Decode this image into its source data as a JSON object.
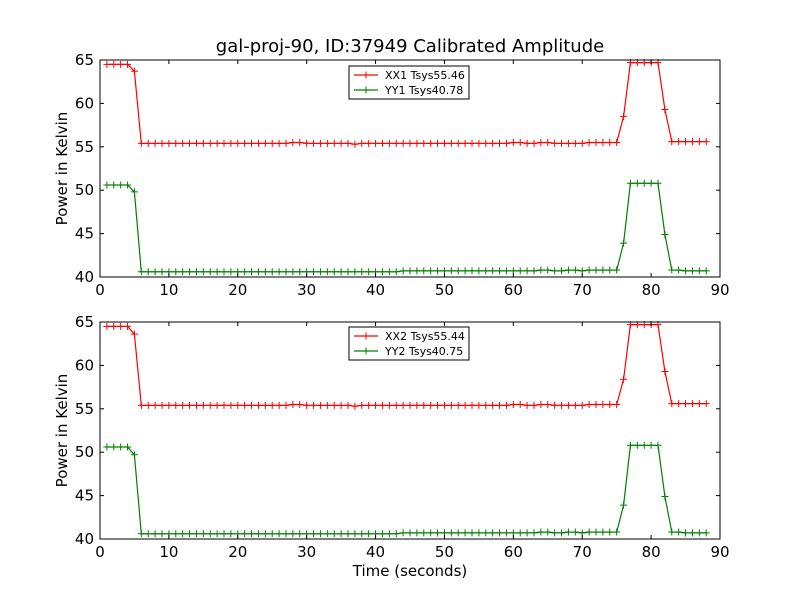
{
  "title": "gal-proj-90, ID:37949 Calibrated Amplitude",
  "chart_data": [
    {
      "type": "line",
      "xlabel": "",
      "ylabel": "Power in Kelvin",
      "xlim": [
        0,
        90
      ],
      "ylim": [
        40,
        65
      ],
      "xticks": [
        "0",
        "10",
        "20",
        "30",
        "40",
        "50",
        "60",
        "70",
        "80",
        "90"
      ],
      "yticks": [
        "40",
        "45",
        "50",
        "55",
        "60",
        "65"
      ],
      "grid": false,
      "legend_position": "top-center",
      "x": [
        1,
        2,
        3,
        4,
        5,
        6,
        7,
        8,
        9,
        10,
        11,
        12,
        13,
        14,
        15,
        16,
        17,
        18,
        19,
        20,
        21,
        22,
        23,
        24,
        25,
        26,
        27,
        28,
        29,
        30,
        31,
        32,
        33,
        34,
        35,
        36,
        37,
        38,
        39,
        40,
        41,
        42,
        43,
        44,
        45,
        46,
        47,
        48,
        49,
        50,
        51,
        52,
        53,
        54,
        55,
        56,
        57,
        58,
        59,
        60,
        61,
        62,
        63,
        64,
        65,
        66,
        67,
        68,
        69,
        70,
        71,
        72,
        73,
        74,
        75,
        76,
        77,
        78,
        79,
        80,
        81,
        82,
        83,
        84,
        85,
        86,
        87,
        88
      ],
      "series": [
        {
          "name": "XX1 Tsys55.46",
          "color": "#ff0000",
          "values": [
            64.5,
            64.5,
            64.5,
            64.5,
            63.7,
            55.4,
            55.4,
            55.4,
            55.4,
            55.4,
            55.4,
            55.4,
            55.4,
            55.4,
            55.4,
            55.4,
            55.4,
            55.4,
            55.4,
            55.4,
            55.4,
            55.4,
            55.4,
            55.4,
            55.4,
            55.4,
            55.4,
            55.5,
            55.5,
            55.4,
            55.4,
            55.4,
            55.4,
            55.4,
            55.4,
            55.4,
            55.3,
            55.4,
            55.4,
            55.4,
            55.4,
            55.4,
            55.4,
            55.4,
            55.4,
            55.4,
            55.4,
            55.4,
            55.4,
            55.4,
            55.4,
            55.4,
            55.4,
            55.4,
            55.4,
            55.4,
            55.4,
            55.4,
            55.4,
            55.5,
            55.5,
            55.4,
            55.4,
            55.5,
            55.5,
            55.4,
            55.4,
            55.4,
            55.4,
            55.4,
            55.5,
            55.5,
            55.5,
            55.5,
            55.5,
            58.5,
            64.7,
            64.7,
            64.7,
            64.7,
            64.7,
            59.3,
            55.6,
            55.6,
            55.6,
            55.6,
            55.6,
            55.6
          ]
        },
        {
          "name": "YY1 Tsys40.78",
          "color": "#008000",
          "values": [
            50.6,
            50.6,
            50.6,
            50.6,
            49.8,
            40.6,
            40.6,
            40.6,
            40.6,
            40.6,
            40.6,
            40.6,
            40.6,
            40.6,
            40.6,
            40.6,
            40.6,
            40.6,
            40.6,
            40.6,
            40.6,
            40.6,
            40.6,
            40.6,
            40.6,
            40.6,
            40.6,
            40.6,
            40.6,
            40.6,
            40.6,
            40.6,
            40.6,
            40.6,
            40.6,
            40.6,
            40.6,
            40.6,
            40.6,
            40.6,
            40.6,
            40.6,
            40.6,
            40.7,
            40.7,
            40.7,
            40.7,
            40.7,
            40.7,
            40.7,
            40.7,
            40.7,
            40.7,
            40.7,
            40.7,
            40.7,
            40.7,
            40.7,
            40.7,
            40.7,
            40.7,
            40.7,
            40.7,
            40.8,
            40.8,
            40.7,
            40.7,
            40.8,
            40.8,
            40.7,
            40.8,
            40.8,
            40.8,
            40.8,
            40.8,
            43.9,
            50.8,
            50.8,
            50.8,
            50.8,
            50.8,
            44.9,
            40.8,
            40.8,
            40.7,
            40.7,
            40.7,
            40.7
          ]
        }
      ]
    },
    {
      "type": "line",
      "xlabel": "Time (seconds)",
      "ylabel": "Power in Kelvin",
      "xlim": [
        0,
        90
      ],
      "ylim": [
        40,
        65
      ],
      "xticks": [
        "0",
        "10",
        "20",
        "30",
        "40",
        "50",
        "60",
        "70",
        "80",
        "90"
      ],
      "yticks": [
        "40",
        "45",
        "50",
        "55",
        "60",
        "65"
      ],
      "grid": false,
      "legend_position": "top-center",
      "x": [
        1,
        2,
        3,
        4,
        5,
        6,
        7,
        8,
        9,
        10,
        11,
        12,
        13,
        14,
        15,
        16,
        17,
        18,
        19,
        20,
        21,
        22,
        23,
        24,
        25,
        26,
        27,
        28,
        29,
        30,
        31,
        32,
        33,
        34,
        35,
        36,
        37,
        38,
        39,
        40,
        41,
        42,
        43,
        44,
        45,
        46,
        47,
        48,
        49,
        50,
        51,
        52,
        53,
        54,
        55,
        56,
        57,
        58,
        59,
        60,
        61,
        62,
        63,
        64,
        65,
        66,
        67,
        68,
        69,
        70,
        71,
        72,
        73,
        74,
        75,
        76,
        77,
        78,
        79,
        80,
        81,
        82,
        83,
        84,
        85,
        86,
        87,
        88
      ],
      "series": [
        {
          "name": "XX2 Tsys55.44",
          "color": "#ff0000",
          "values": [
            64.5,
            64.5,
            64.5,
            64.5,
            63.6,
            55.4,
            55.4,
            55.4,
            55.4,
            55.4,
            55.4,
            55.4,
            55.4,
            55.4,
            55.4,
            55.4,
            55.4,
            55.4,
            55.4,
            55.4,
            55.4,
            55.4,
            55.4,
            55.4,
            55.4,
            55.4,
            55.4,
            55.5,
            55.5,
            55.4,
            55.4,
            55.4,
            55.4,
            55.4,
            55.4,
            55.4,
            55.3,
            55.4,
            55.4,
            55.4,
            55.4,
            55.4,
            55.4,
            55.4,
            55.4,
            55.4,
            55.4,
            55.4,
            55.4,
            55.4,
            55.4,
            55.4,
            55.4,
            55.4,
            55.4,
            55.4,
            55.4,
            55.4,
            55.4,
            55.5,
            55.5,
            55.4,
            55.4,
            55.5,
            55.5,
            55.4,
            55.4,
            55.4,
            55.4,
            55.4,
            55.5,
            55.5,
            55.5,
            55.5,
            55.5,
            58.4,
            64.7,
            64.7,
            64.7,
            64.7,
            64.7,
            59.3,
            55.6,
            55.6,
            55.6,
            55.6,
            55.6,
            55.6
          ]
        },
        {
          "name": "YY2 Tsys40.75",
          "color": "#008000",
          "values": [
            50.6,
            50.6,
            50.6,
            50.6,
            49.7,
            40.6,
            40.6,
            40.6,
            40.6,
            40.6,
            40.6,
            40.6,
            40.6,
            40.6,
            40.6,
            40.6,
            40.6,
            40.6,
            40.6,
            40.6,
            40.6,
            40.6,
            40.6,
            40.6,
            40.6,
            40.6,
            40.6,
            40.6,
            40.6,
            40.6,
            40.6,
            40.6,
            40.6,
            40.6,
            40.6,
            40.6,
            40.6,
            40.6,
            40.6,
            40.6,
            40.6,
            40.6,
            40.6,
            40.7,
            40.7,
            40.7,
            40.7,
            40.7,
            40.7,
            40.7,
            40.7,
            40.7,
            40.7,
            40.7,
            40.7,
            40.7,
            40.7,
            40.7,
            40.7,
            40.7,
            40.7,
            40.7,
            40.7,
            40.8,
            40.8,
            40.7,
            40.7,
            40.8,
            40.8,
            40.7,
            40.8,
            40.8,
            40.8,
            40.8,
            40.8,
            43.9,
            50.8,
            50.8,
            50.8,
            50.8,
            50.8,
            44.9,
            40.8,
            40.8,
            40.7,
            40.7,
            40.7,
            40.7
          ]
        }
      ]
    }
  ]
}
